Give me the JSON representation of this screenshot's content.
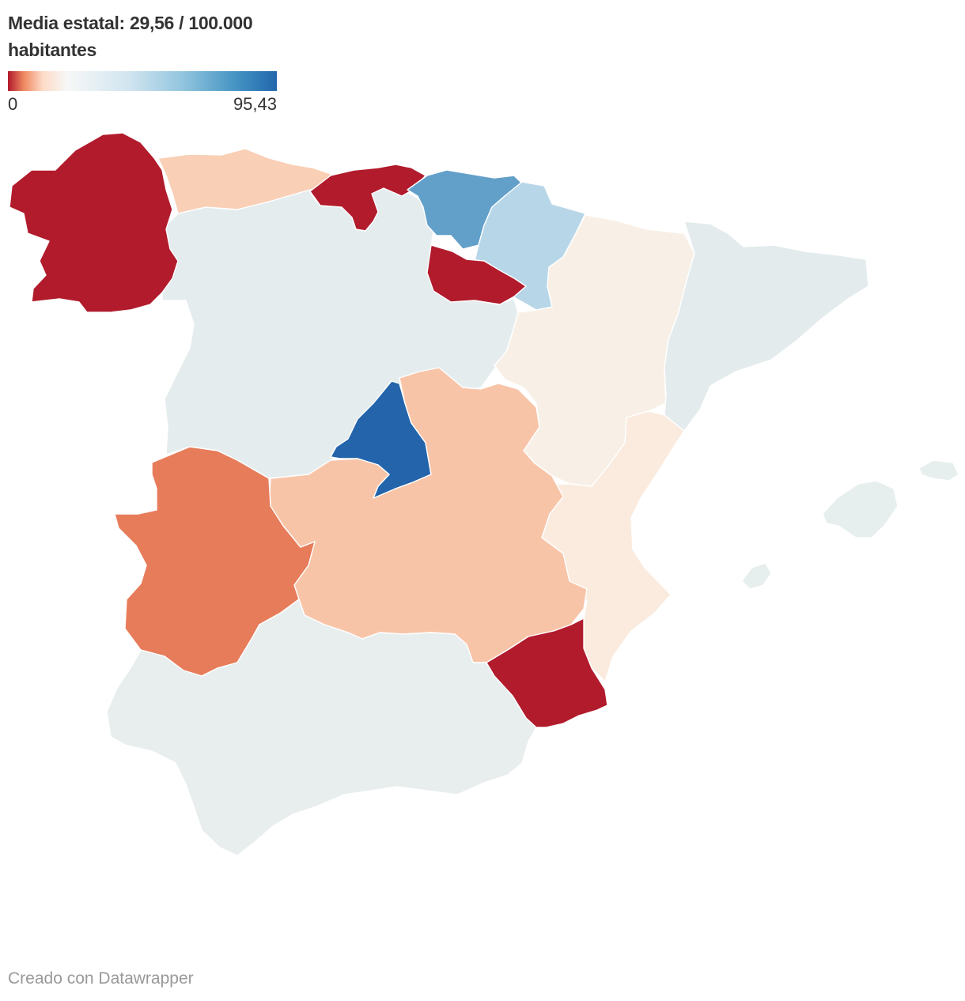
{
  "legend": {
    "title": "Media estatal: 29,56 / 100.000\nhabitantes",
    "min_label": "0",
    "max_label": "95,43",
    "gradient_colors": [
      "#b2182b",
      "#ef8a62",
      "#fddbc7",
      "#f7f7f7",
      "#d1e5f0",
      "#92c5de",
      "#4393c3",
      "#2166ac"
    ]
  },
  "regions": [
    {
      "id": "galicia",
      "color": "#b11b2c"
    },
    {
      "id": "asturias",
      "color": "#f9cfb5"
    },
    {
      "id": "cantabria",
      "color": "#b11b2c"
    },
    {
      "id": "pais-vasco",
      "color": "#62a0ca"
    },
    {
      "id": "navarra",
      "color": "#b7d6e8"
    },
    {
      "id": "la-rioja",
      "color": "#b11b2c"
    },
    {
      "id": "aragon",
      "color": "#f8f0e6"
    },
    {
      "id": "cataluna",
      "color": "#e3ebed"
    },
    {
      "id": "castilla-y-leon",
      "color": "#e4ecee"
    },
    {
      "id": "madrid",
      "color": "#2364aa"
    },
    {
      "id": "castilla-la-mancha",
      "color": "#f8c4a8"
    },
    {
      "id": "extremadura",
      "color": "#e77c5a"
    },
    {
      "id": "comunidad-valenciana",
      "color": "#faebde"
    },
    {
      "id": "murcia",
      "color": "#b11b2c"
    },
    {
      "id": "andalucia",
      "color": "#e8eeee"
    },
    {
      "id": "islas-baleares",
      "color": "#e7eeee"
    }
  ],
  "footer": "Creado con Datawrapper"
}
